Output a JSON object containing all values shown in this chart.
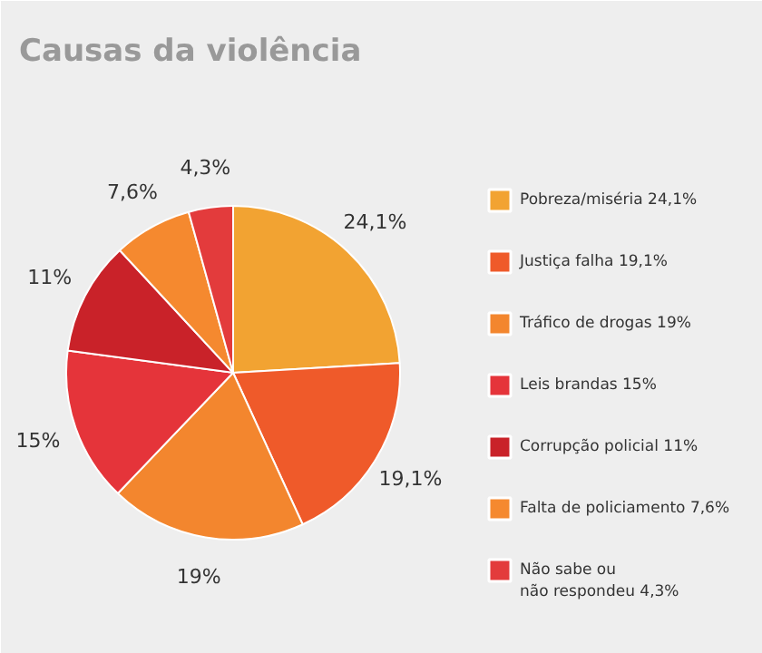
{
  "chart_data": {
    "type": "pie",
    "title": "Causas da violência",
    "categories": [
      "Pobreza/miséria 24,1%",
      "Justiça falha 19,1%",
      "Tráfico de drogas 19%",
      "Leis brandas 15%",
      "Corrupção policial 11%",
      "Falta de policiamento 7,6%",
      "Não sabe ou\nnão respondeu 4,3%"
    ],
    "values": [
      24.1,
      19.1,
      19,
      15,
      11,
      7.6,
      4.3
    ],
    "value_labels": [
      "24,1%",
      "19,1%",
      "19%",
      "15%",
      "11%",
      "7,6%",
      "4,3%"
    ],
    "colors": [
      "#f2a332",
      "#ef5a2a",
      "#f3862e",
      "#e5343a",
      "#c92229",
      "#f5892f",
      "#e33b3c"
    ],
    "legend": "right"
  }
}
